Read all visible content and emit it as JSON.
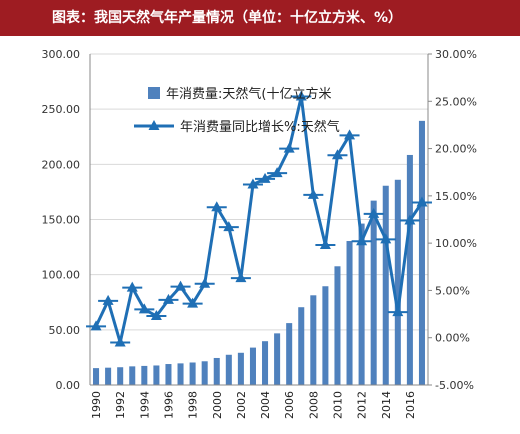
{
  "header": {
    "title": "图表：我国天然气年产量情况（单位：十亿立方米、%）"
  },
  "colors": {
    "bar": "#4f81bd",
    "line": "#1f6fb5",
    "title_bg": "#9e1c22"
  },
  "chart_data": {
    "type": "bar",
    "title": "",
    "categories": [
      "1990",
      "1991",
      "1992",
      "1993",
      "1994",
      "1995",
      "1996",
      "1997",
      "1998",
      "1999",
      "2000",
      "2001",
      "2002",
      "2003",
      "2004",
      "2005",
      "2006",
      "2007",
      "2008",
      "2009",
      "2010",
      "2011",
      "2012",
      "2013",
      "2014",
      "2015",
      "2016",
      "2017"
    ],
    "x_tick_labels": [
      "1990",
      "1992",
      "1994",
      "1996",
      "1998",
      "2000",
      "2002",
      "2004",
      "2006",
      "2008",
      "2010",
      "2012",
      "2014",
      "2016"
    ],
    "y_left": {
      "min": 0,
      "max": 300,
      "ticks": [
        "0.00",
        "50.00",
        "100.00",
        "150.00",
        "200.00",
        "250.00",
        "300.00"
      ]
    },
    "y_right": {
      "min": -5,
      "max": 30,
      "ticks": [
        "-5.00%",
        "0.00%",
        "5.00%",
        "10.00%",
        "15.00%",
        "20.00%",
        "25.00%",
        "30.00%"
      ]
    },
    "legend_placement": "top-center",
    "series": [
      {
        "name": "年消费量:天然气(十亿立方米",
        "type": "bar",
        "axis": "left",
        "values": [
          15.3,
          15.7,
          16.1,
          16.9,
          17.3,
          17.7,
          19.0,
          19.6,
          20.4,
          21.5,
          24.5,
          27.4,
          29.2,
          33.9,
          39.7,
          46.8,
          56.1,
          70.5,
          81.3,
          89.5,
          107.6,
          130.5,
          146.3,
          167.1,
          180.6,
          186.0,
          208.5,
          239.4
        ]
      },
      {
        "name": "年消费量同比增长%:天然气",
        "type": "line",
        "axis": "right",
        "values": [
          1.2,
          3.9,
          -0.5,
          5.3,
          3.0,
          2.3,
          4.0,
          5.4,
          3.6,
          5.7,
          13.8,
          11.7,
          6.3,
          16.2,
          16.8,
          17.4,
          20.0,
          25.5,
          15.1,
          9.8,
          19.3,
          21.4,
          10.2,
          13.1,
          10.4,
          2.7,
          12.4,
          14.3
        ]
      }
    ]
  }
}
